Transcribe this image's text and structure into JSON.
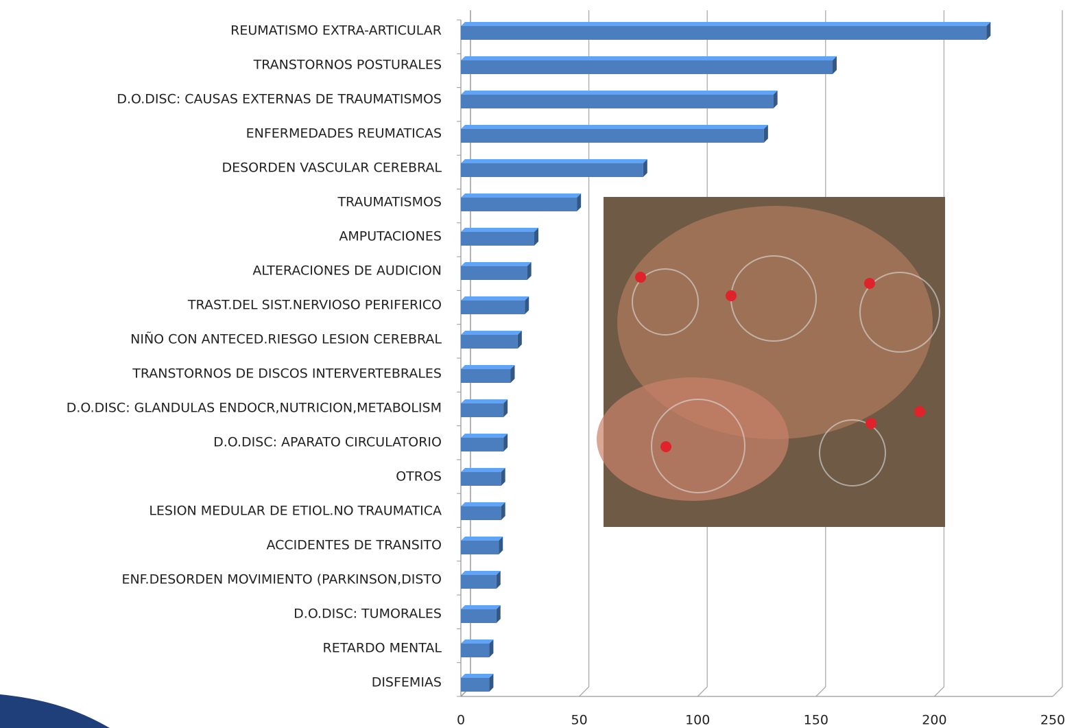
{
  "chart_data": {
    "type": "bar",
    "orientation": "horizontal",
    "three_d": true,
    "categories": [
      "REUMATISMO EXTRA-ARTICULAR",
      "TRANSTORNOS POSTURALES",
      "D.O.DISC: CAUSAS EXTERNAS DE TRAUMATISMOS",
      "ENFERMEDADES REUMATICAS",
      "DESORDEN VASCULAR CEREBRAL",
      "TRAUMATISMOS",
      "AMPUTACIONES",
      "ALTERACIONES DE AUDICION",
      "TRAST.DEL SIST.NERVIOSO PERIFERICO",
      "NIÑO CON ANTECED.RIESGO LESION CEREBRAL",
      "TRANSTORNOS DE DISCOS INTERVERTEBRALES",
      "D.O.DISC: GLANDULAS ENDOCR,NUTRICION,METABOLISM",
      "D.O.DISC: APARATO CIRCULATORIO",
      "OTROS",
      "LESION MEDULAR DE ETIOL.NO TRAUMATICA",
      "ACCIDENTES DE TRANSITO",
      "ENF.DESORDEN MOVIMIENTO (PARKINSON,DISTO",
      "D.O.DISC: TUMORALES",
      "RETARDO MENTAL",
      "DISFEMIAS"
    ],
    "values": [
      222,
      157,
      132,
      128,
      77,
      49,
      31,
      28,
      27,
      24,
      21,
      18,
      18,
      17,
      17,
      16,
      15,
      15,
      12,
      12
    ],
    "color": "#4a7ebf",
    "xlim": [
      0,
      250
    ],
    "xticks": [
      0,
      50,
      100,
      150,
      200,
      250
    ],
    "grid": true
  }
}
